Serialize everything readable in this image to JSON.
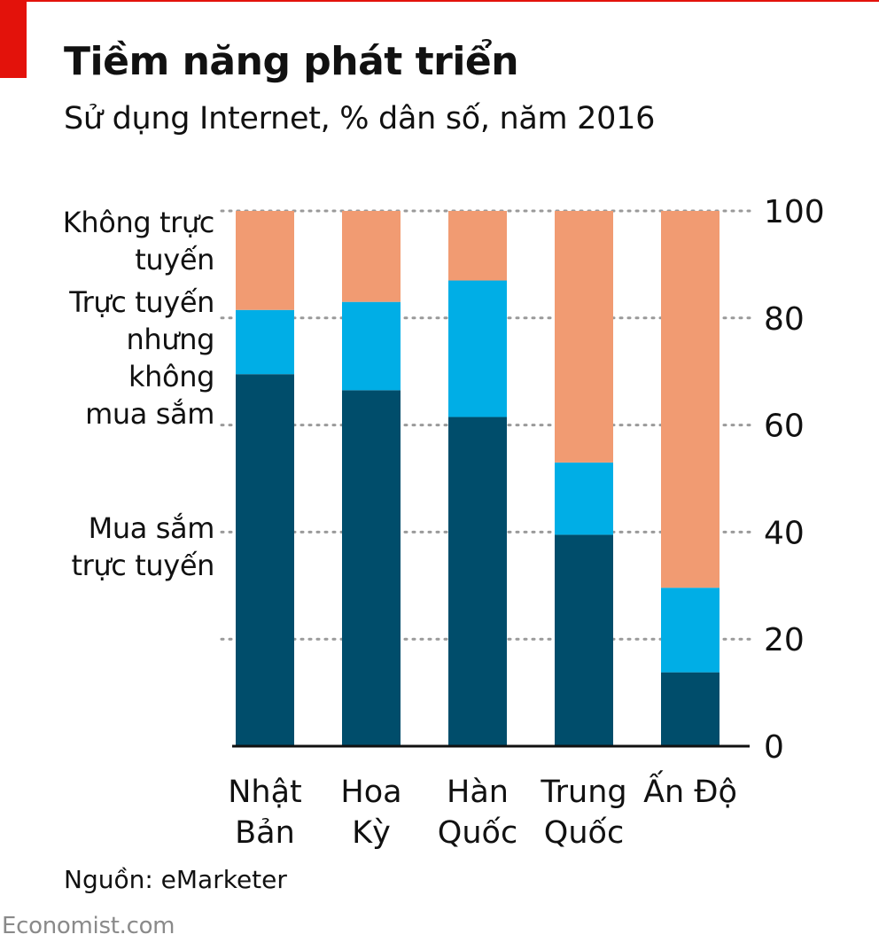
{
  "header": {
    "title": "Tiềm năng phát triển",
    "subtitle": "Sử dụng Internet, % dân số, năm 2016"
  },
  "legend": {
    "offline": [
      "Không trực",
      "tuyến"
    ],
    "online_no_shopping": [
      "Trực tuyến",
      "nhưng",
      "không",
      "mua sắm"
    ],
    "online_shopping": [
      "Mua sắm",
      "trực tuyến"
    ]
  },
  "footer": {
    "source": "Nguồn: eMarketer",
    "brand": "Economist.com"
  },
  "colors": {
    "online_shopping": "#004d6b",
    "online_no_shopping": "#00aee6",
    "offline": "#f19b72",
    "grid": "#9a9a9a",
    "accent": "#e3120b"
  },
  "chart_data": {
    "type": "bar",
    "stacked": true,
    "title": "Tiềm năng phát triển",
    "subtitle": "Sử dụng Internet, % dân số, năm 2016",
    "categories": [
      [
        "Nhật",
        "Bản"
      ],
      [
        "Hoa",
        "Kỳ"
      ],
      [
        "Hàn",
        "Quốc"
      ],
      [
        "Trung",
        "Quốc"
      ],
      [
        "Ấn Độ"
      ]
    ],
    "series": [
      {
        "name": "Mua sắm trực tuyến",
        "color": "#004d6b",
        "values": [
          69.5,
          66.5,
          61.5,
          39.5,
          13.8
        ]
      },
      {
        "name": "Trực tuyến nhưng không mua sắm",
        "color": "#00aee6",
        "values": [
          12,
          16.5,
          25.5,
          13.5,
          15.8
        ]
      },
      {
        "name": "Không trực tuyến",
        "color": "#f19b72",
        "values": [
          18.5,
          17,
          13,
          47,
          70.4
        ]
      }
    ],
    "ylim": [
      0,
      100
    ],
    "yticks": [
      0,
      20,
      40,
      60,
      80,
      100
    ],
    "y_axis_side": "right",
    "grid": true,
    "legend_position": "left"
  }
}
